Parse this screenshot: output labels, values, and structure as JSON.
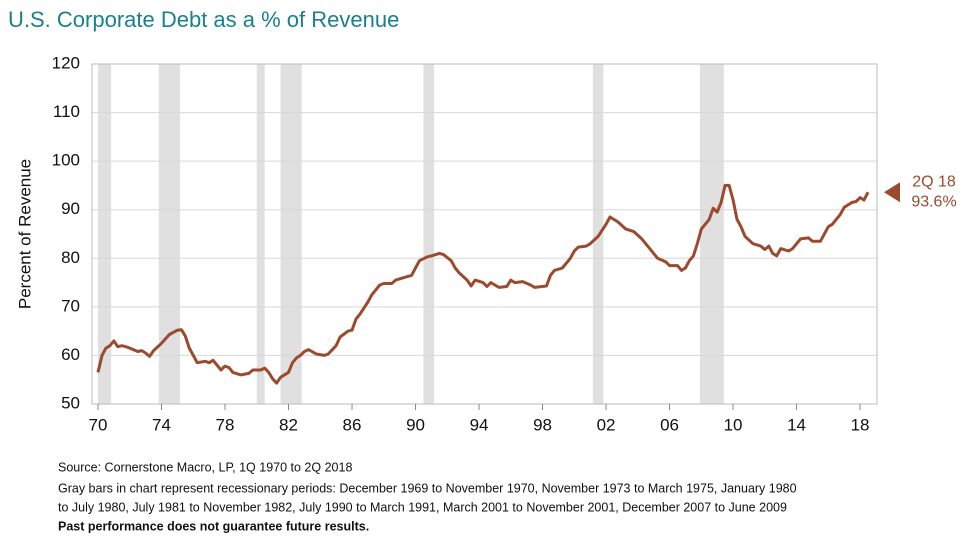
{
  "chart_data": {
    "type": "line",
    "title": "U.S. Corporate Debt as a % of Revenue",
    "ylabel": "Percent of Revenue",
    "color": "#9b4a2e",
    "band_color": "#e0e0e0",
    "grid": true,
    "xlim": [
      1970,
      2018.5
    ],
    "ylim": [
      50,
      120
    ],
    "yticks": [
      50,
      60,
      70,
      80,
      90,
      100,
      110,
      120
    ],
    "xticks": [
      {
        "value": 1970,
        "label": "70"
      },
      {
        "value": 1974,
        "label": "74"
      },
      {
        "value": 1978,
        "label": "78"
      },
      {
        "value": 1982,
        "label": "82"
      },
      {
        "value": 1986,
        "label": "86"
      },
      {
        "value": 1990,
        "label": "90"
      },
      {
        "value": 1994,
        "label": "94"
      },
      {
        "value": 1998,
        "label": "98"
      },
      {
        "value": 2002,
        "label": "02"
      },
      {
        "value": 2006,
        "label": "06"
      },
      {
        "value": 2010,
        "label": "10"
      },
      {
        "value": 2014,
        "label": "14"
      },
      {
        "value": 2018,
        "label": "18"
      }
    ],
    "recessions": [
      {
        "start": 1969.92,
        "end": 1970.83
      },
      {
        "start": 1973.83,
        "end": 1975.17
      },
      {
        "start": 1980.0,
        "end": 1980.5
      },
      {
        "start": 1981.5,
        "end": 1982.83
      },
      {
        "start": 1990.5,
        "end": 1991.17
      },
      {
        "start": 2001.17,
        "end": 2001.83
      },
      {
        "start": 2007.92,
        "end": 2009.42
      }
    ],
    "x": [
      1970.0,
      1970.25,
      1970.5,
      1970.75,
      1971.0,
      1971.25,
      1971.5,
      1971.75,
      1972.0,
      1972.5,
      1972.75,
      1973.0,
      1973.25,
      1973.5,
      1974.0,
      1974.5,
      1975.0,
      1975.25,
      1975.5,
      1975.75,
      1976.0,
      1976.25,
      1976.75,
      1977.0,
      1977.25,
      1977.75,
      1978.0,
      1978.25,
      1978.5,
      1979.0,
      1979.5,
      1979.75,
      1980.25,
      1980.5,
      1980.75,
      1981.0,
      1981.25,
      1981.5,
      1982.0,
      1982.25,
      1982.5,
      1982.75,
      1983.0,
      1983.25,
      1983.75,
      1984.25,
      1984.5,
      1985.0,
      1985.25,
      1985.75,
      1986.0,
      1986.25,
      1986.5,
      1987.0,
      1987.25,
      1987.75,
      1988.0,
      1988.5,
      1988.75,
      1989.25,
      1989.75,
      1990.0,
      1990.25,
      1990.75,
      1991.0,
      1991.5,
      1991.75,
      1992.25,
      1992.5,
      1992.75,
      1993.25,
      1993.5,
      1993.75,
      1994.25,
      1994.5,
      1994.75,
      1995.25,
      1995.75,
      1996.0,
      1996.25,
      1996.75,
      1997.25,
      1997.5,
      1998.25,
      1998.5,
      1998.75,
      1999.25,
      1999.75,
      2000.0,
      2000.25,
      2000.75,
      2001.0,
      2001.5,
      2002.0,
      2002.25,
      2002.75,
      2003.25,
      2003.75,
      2004.25,
      2004.75,
      2005.25,
      2005.75,
      2006.0,
      2006.5,
      2006.75,
      2007.0,
      2007.25,
      2007.5,
      2007.75,
      2008.0,
      2008.5,
      2008.75,
      2009.0,
      2009.25,
      2009.5,
      2009.75,
      2010.0,
      2010.25,
      2010.5,
      2010.75,
      2011.25,
      2011.75,
      2012.0,
      2012.25,
      2012.5,
      2012.75,
      2013.0,
      2013.5,
      2013.75,
      2014.25,
      2014.75,
      2015.0,
      2015.5,
      2016.0,
      2016.25,
      2016.75,
      2017.0,
      2017.5,
      2017.75,
      2018.0,
      2018.25,
      2018.5
    ],
    "values": [
      56.5,
      60,
      61.5,
      62,
      63,
      61.8,
      62,
      61.8,
      61.5,
      60.8,
      61,
      60.5,
      59.8,
      61,
      62.5,
      64.3,
      65.2,
      65.3,
      64,
      61.5,
      60,
      58.5,
      58.8,
      58.5,
      59,
      57,
      57.8,
      57.5,
      56.5,
      56,
      56.3,
      57,
      57,
      57.4,
      56.5,
      55.2,
      54.3,
      55.5,
      56.5,
      58.5,
      59.5,
      60,
      60.8,
      61.2,
      60.3,
      60,
      60.3,
      62,
      63.8,
      65,
      65.2,
      67.5,
      68.5,
      71,
      72.5,
      74.5,
      74.8,
      74.8,
      75.5,
      76,
      76.5,
      78,
      79.5,
      80.3,
      80.5,
      81,
      80.8,
      79.5,
      78,
      77,
      75.5,
      74.3,
      75.5,
      75,
      74.2,
      75,
      74,
      74.2,
      75.5,
      75,
      75.2,
      74.5,
      74,
      74.3,
      76.5,
      77.5,
      78,
      80,
      81.5,
      82.3,
      82.5,
      83,
      84.5,
      87,
      88.5,
      87.5,
      86,
      85.5,
      84,
      82,
      80,
      79.3,
      78.5,
      78.5,
      77.5,
      78,
      79.5,
      80.5,
      83,
      86,
      88,
      90.3,
      89.5,
      91.5,
      95,
      95,
      92,
      88,
      86.5,
      84.5,
      83,
      82.5,
      81.8,
      82.5,
      81,
      80.5,
      82,
      81.5,
      82,
      84,
      84.2,
      83.5,
      83.5,
      86.5,
      87,
      89,
      90.5,
      91.5,
      91.7,
      92.5,
      92,
      93.6
    ],
    "annotation": {
      "label": "2Q 18",
      "value_label": "93.6%"
    },
    "source": "Source: Cornerstone Macro, LP, 1Q 1970 to 2Q 2018",
    "note_lines": [
      "Gray bars in chart represent recessionary periods: December 1969 to November 1970, November 1973 to March 1975, January 1980",
      "to July 1980, July 1981 to November 1982, July 1990 to March 1991, March 2001 to November 2001, December 2007 to June 2009"
    ],
    "disclaimer": "Past performance does not guarantee future results."
  }
}
